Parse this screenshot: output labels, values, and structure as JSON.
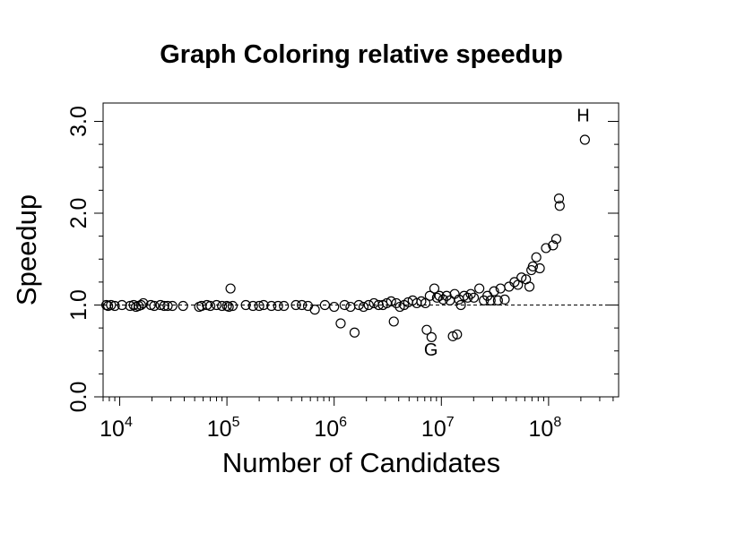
{
  "chart_data": {
    "type": "scatter",
    "title": "Graph Coloring relative speedup",
    "xlabel": "Number of Candidates",
    "ylabel": "Speedup",
    "xscale": "log",
    "xlim": [
      7000,
      450000000
    ],
    "ylim": [
      0,
      3.2
    ],
    "grid": false,
    "legend": "none",
    "x_ticks": [
      {
        "value": 10000,
        "base": "10",
        "exp": "4"
      },
      {
        "value": 100000,
        "base": "10",
        "exp": "5"
      },
      {
        "value": 1000000,
        "base": "10",
        "exp": "6"
      },
      {
        "value": 10000000,
        "base": "10",
        "exp": "7"
      },
      {
        "value": 100000000,
        "base": "10",
        "exp": "8"
      }
    ],
    "y_ticks": [
      {
        "value": 0,
        "label": "0.0"
      },
      {
        "value": 1,
        "label": "1.0"
      },
      {
        "value": 2,
        "label": "2.0"
      },
      {
        "value": 3,
        "label": "3.0"
      }
    ],
    "reference_line": {
      "y": 1.0,
      "style": "dashed"
    },
    "annotations": [
      {
        "text": "G",
        "x": 8000000,
        "y": 0.45
      },
      {
        "text": "H",
        "x": 210000000,
        "y": 3.0
      }
    ],
    "points": [
      {
        "x": 7500,
        "y": 1.0
      },
      {
        "x": 7800,
        "y": 0.99
      },
      {
        "x": 8300,
        "y": 1.0
      },
      {
        "x": 9000,
        "y": 0.99
      },
      {
        "x": 10500,
        "y": 1.0
      },
      {
        "x": 12500,
        "y": 0.99
      },
      {
        "x": 13500,
        "y": 1.0
      },
      {
        "x": 14200,
        "y": 0.98
      },
      {
        "x": 15000,
        "y": 0.99
      },
      {
        "x": 15800,
        "y": 1.0
      },
      {
        "x": 16600,
        "y": 1.02
      },
      {
        "x": 19500,
        "y": 1.0
      },
      {
        "x": 21000,
        "y": 0.99
      },
      {
        "x": 24000,
        "y": 1.0
      },
      {
        "x": 26000,
        "y": 0.99
      },
      {
        "x": 28000,
        "y": 0.99
      },
      {
        "x": 31000,
        "y": 0.99
      },
      {
        "x": 39000,
        "y": 0.99
      },
      {
        "x": 55000,
        "y": 0.98
      },
      {
        "x": 58000,
        "y": 0.99
      },
      {
        "x": 65000,
        "y": 1.0
      },
      {
        "x": 70000,
        "y": 0.99
      },
      {
        "x": 80000,
        "y": 1.0
      },
      {
        "x": 90000,
        "y": 0.99
      },
      {
        "x": 100000,
        "y": 0.99
      },
      {
        "x": 104000,
        "y": 0.98
      },
      {
        "x": 108000,
        "y": 1.18
      },
      {
        "x": 113000,
        "y": 0.99
      },
      {
        "x": 150000,
        "y": 1.0
      },
      {
        "x": 175000,
        "y": 0.99
      },
      {
        "x": 200000,
        "y": 0.99
      },
      {
        "x": 220000,
        "y": 1.0
      },
      {
        "x": 260000,
        "y": 0.99
      },
      {
        "x": 300000,
        "y": 0.99
      },
      {
        "x": 340000,
        "y": 0.99
      },
      {
        "x": 440000,
        "y": 1.0
      },
      {
        "x": 500000,
        "y": 1.0
      },
      {
        "x": 570000,
        "y": 0.99
      },
      {
        "x": 660000,
        "y": 0.95
      },
      {
        "x": 820000,
        "y": 1.0
      },
      {
        "x": 1000000,
        "y": 0.98
      },
      {
        "x": 1150000,
        "y": 0.8
      },
      {
        "x": 1250000,
        "y": 1.0
      },
      {
        "x": 1420000,
        "y": 0.98
      },
      {
        "x": 1550000,
        "y": 0.7
      },
      {
        "x": 1700000,
        "y": 1.0
      },
      {
        "x": 1880000,
        "y": 0.98
      },
      {
        "x": 2100000,
        "y": 1.0
      },
      {
        "x": 2350000,
        "y": 1.02
      },
      {
        "x": 2600000,
        "y": 1.0
      },
      {
        "x": 2850000,
        "y": 1.0
      },
      {
        "x": 3100000,
        "y": 1.02
      },
      {
        "x": 3400000,
        "y": 1.04
      },
      {
        "x": 3600000,
        "y": 0.82
      },
      {
        "x": 3800000,
        "y": 1.02
      },
      {
        "x": 4100000,
        "y": 0.98
      },
      {
        "x": 4500000,
        "y": 1.0
      },
      {
        "x": 4900000,
        "y": 1.03
      },
      {
        "x": 5400000,
        "y": 1.05
      },
      {
        "x": 5900000,
        "y": 1.02
      },
      {
        "x": 6500000,
        "y": 1.04
      },
      {
        "x": 7100000,
        "y": 1.02
      },
      {
        "x": 7300000,
        "y": 0.73
      },
      {
        "x": 7800000,
        "y": 1.1
      },
      {
        "x": 8100000,
        "y": 0.65
      },
      {
        "x": 8600000,
        "y": 1.18
      },
      {
        "x": 9100000,
        "y": 1.08
      },
      {
        "x": 9600000,
        "y": 1.1
      },
      {
        "x": 10400000,
        "y": 1.06
      },
      {
        "x": 11200000,
        "y": 1.1
      },
      {
        "x": 12000000,
        "y": 1.05
      },
      {
        "x": 12800000,
        "y": 0.66
      },
      {
        "x": 13300000,
        "y": 1.12
      },
      {
        "x": 14000000,
        "y": 0.68
      },
      {
        "x": 14600000,
        "y": 1.06
      },
      {
        "x": 15200000,
        "y": 1.0
      },
      {
        "x": 16300000,
        "y": 1.1
      },
      {
        "x": 17600000,
        "y": 1.08
      },
      {
        "x": 18800000,
        "y": 1.12
      },
      {
        "x": 20100000,
        "y": 1.08
      },
      {
        "x": 22600000,
        "y": 1.18
      },
      {
        "x": 24900000,
        "y": 1.05
      },
      {
        "x": 26900000,
        "y": 1.1
      },
      {
        "x": 28800000,
        "y": 1.05
      },
      {
        "x": 31000000,
        "y": 1.15
      },
      {
        "x": 33700000,
        "y": 1.05
      },
      {
        "x": 35600000,
        "y": 1.18
      },
      {
        "x": 39000000,
        "y": 1.06
      },
      {
        "x": 42800000,
        "y": 1.2
      },
      {
        "x": 48100000,
        "y": 1.25
      },
      {
        "x": 51800000,
        "y": 1.22
      },
      {
        "x": 55900000,
        "y": 1.3
      },
      {
        "x": 61600000,
        "y": 1.28
      },
      {
        "x": 66300000,
        "y": 1.2
      },
      {
        "x": 69100000,
        "y": 1.38
      },
      {
        "x": 71400000,
        "y": 1.42
      },
      {
        "x": 76800000,
        "y": 1.52
      },
      {
        "x": 82800000,
        "y": 1.4
      },
      {
        "x": 94600000,
        "y": 1.62
      },
      {
        "x": 110000000,
        "y": 1.65
      },
      {
        "x": 118000000,
        "y": 1.72
      },
      {
        "x": 125000000,
        "y": 2.16
      },
      {
        "x": 127000000,
        "y": 2.08
      },
      {
        "x": 218000000,
        "y": 2.8
      }
    ]
  }
}
